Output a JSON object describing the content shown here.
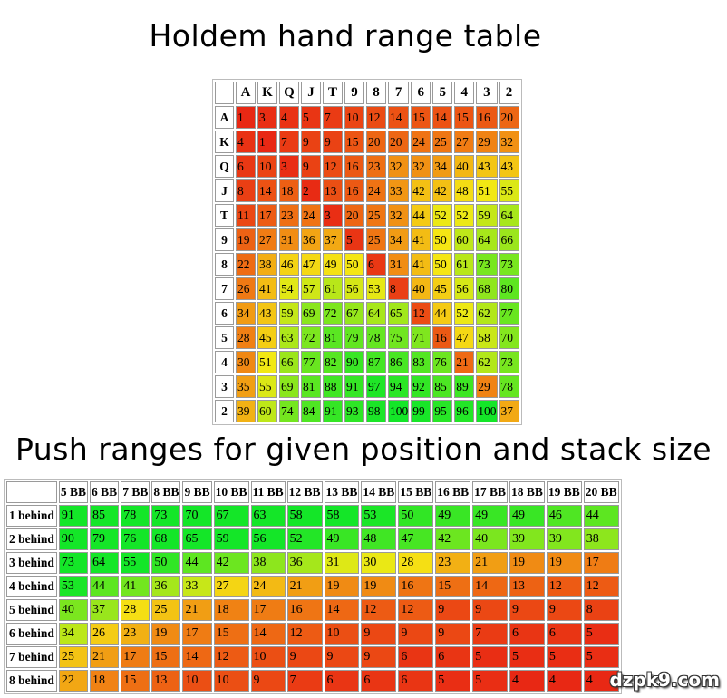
{
  "chart_data": [
    {
      "type": "heatmap",
      "title": "Holdem hand range table",
      "columns": [
        "A",
        "K",
        "Q",
        "J",
        "T",
        "9",
        "8",
        "7",
        "6",
        "5",
        "4",
        "3",
        "2"
      ],
      "rows": [
        "A",
        "K",
        "Q",
        "J",
        "T",
        "9",
        "8",
        "7",
        "6",
        "5",
        "4",
        "3",
        "2"
      ],
      "values": [
        [
          1,
          3,
          4,
          5,
          7,
          10,
          12,
          14,
          15,
          14,
          15,
          16,
          20
        ],
        [
          4,
          1,
          7,
          9,
          9,
          15,
          20,
          20,
          24,
          25,
          27,
          29,
          32
        ],
        [
          6,
          10,
          3,
          9,
          12,
          16,
          23,
          32,
          32,
          34,
          40,
          43,
          43
        ],
        [
          8,
          14,
          18,
          2,
          13,
          16,
          24,
          33,
          42,
          42,
          48,
          51,
          55
        ],
        [
          11,
          17,
          23,
          24,
          3,
          20,
          25,
          32,
          44,
          52,
          52,
          59,
          64
        ],
        [
          19,
          27,
          31,
          36,
          37,
          5,
          25,
          34,
          41,
          50,
          60,
          64,
          66
        ],
        [
          22,
          38,
          46,
          47,
          49,
          50,
          6,
          31,
          41,
          50,
          61,
          73,
          73
        ],
        [
          26,
          41,
          54,
          57,
          61,
          56,
          53,
          8,
          40,
          45,
          56,
          68,
          80
        ],
        [
          34,
          43,
          59,
          69,
          72,
          67,
          64,
          65,
          12,
          44,
          52,
          62,
          77
        ],
        [
          28,
          45,
          63,
          72,
          81,
          79,
          78,
          75,
          71,
          16,
          47,
          58,
          70
        ],
        [
          30,
          51,
          66,
          77,
          82,
          90,
          87,
          86,
          83,
          76,
          21,
          62,
          73
        ],
        [
          35,
          55,
          69,
          81,
          88,
          91,
          97,
          94,
          92,
          85,
          89,
          29,
          78
        ],
        [
          39,
          60,
          74,
          84,
          91,
          93,
          98,
          100,
          99,
          95,
          96,
          100,
          37
        ]
      ]
    },
    {
      "type": "heatmap",
      "title": "Push ranges for given position and stack size",
      "columns": [
        "5 BB",
        "6 BB",
        "7 BB",
        "8 BB",
        "9 BB",
        "10 BB",
        "11 BB",
        "12 BB",
        "13 BB",
        "14 BB",
        "15 BB",
        "16 BB",
        "17 BB",
        "18 BB",
        "19 BB",
        "20 BB"
      ],
      "rows": [
        "1 behind",
        "2 behind",
        "3 behind",
        "4 behind",
        "5 behind",
        "6 behind",
        "7 behind",
        "8 behind"
      ],
      "values": [
        [
          91,
          85,
          78,
          73,
          70,
          67,
          63,
          58,
          58,
          53,
          50,
          49,
          49,
          49,
          46,
          44
        ],
        [
          90,
          79,
          76,
          68,
          65,
          59,
          56,
          52,
          49,
          48,
          47,
          42,
          40,
          39,
          39,
          38
        ],
        [
          73,
          64,
          55,
          50,
          44,
          42,
          38,
          36,
          31,
          30,
          28,
          23,
          21,
          19,
          19,
          17
        ],
        [
          53,
          44,
          41,
          36,
          33,
          27,
          24,
          21,
          19,
          19,
          16,
          15,
          14,
          13,
          12,
          12
        ],
        [
          40,
          37,
          28,
          25,
          21,
          18,
          17,
          16,
          14,
          12,
          12,
          9,
          9,
          9,
          9,
          8
        ],
        [
          34,
          26,
          23,
          19,
          17,
          15,
          14,
          12,
          10,
          9,
          9,
          9,
          7,
          6,
          6,
          5
        ],
        [
          25,
          21,
          17,
          15,
          14,
          12,
          10,
          9,
          9,
          9,
          6,
          6,
          5,
          5,
          5,
          5
        ],
        [
          22,
          18,
          15,
          13,
          10,
          10,
          9,
          7,
          6,
          6,
          6,
          5,
          5,
          4,
          4,
          4
        ]
      ]
    }
  ],
  "watermark": "dzpk9.com"
}
